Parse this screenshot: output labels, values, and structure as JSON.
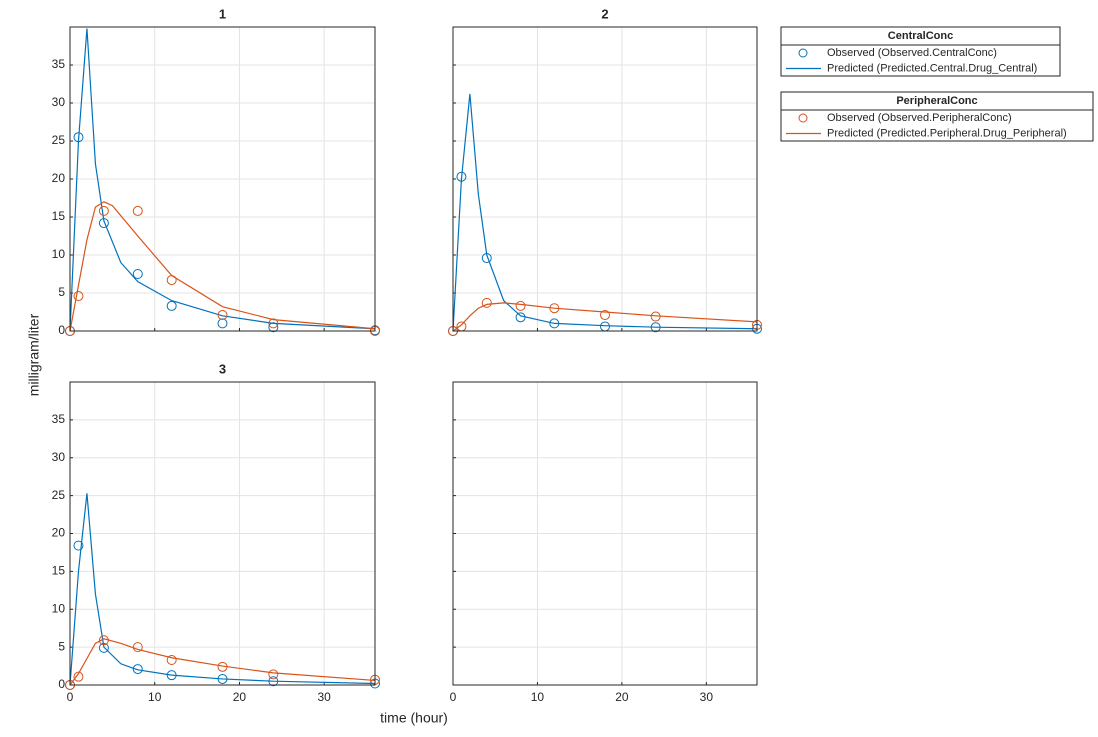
{
  "shared": {
    "xlabel": "time (hour)",
    "ylabel": "milligram/liter"
  },
  "legend": [
    {
      "title": "CentralConc",
      "entries": [
        {
          "name": "Observed (Observed.CentralConc)",
          "kind": "scatter",
          "color": "#0072BD"
        },
        {
          "name": "Predicted (Predicted.Central.Drug_Central)",
          "kind": "line",
          "color": "#0072BD"
        }
      ]
    },
    {
      "title": "PeripheralConc",
      "entries": [
        {
          "name": "Observed (Observed.PeripheralConc)",
          "kind": "scatter",
          "color": "#D95319"
        },
        {
          "name": "Predicted (Predicted.Peripheral.Drug_Peripheral)",
          "kind": "line",
          "color": "#D95319"
        }
      ]
    }
  ],
  "chart_data": [
    {
      "type": "line",
      "title": "1",
      "xlim": [
        0,
        36
      ],
      "ylim": [
        0,
        40
      ],
      "xticks": [
        0,
        10,
        20,
        30
      ],
      "yticks": [
        0,
        5,
        10,
        15,
        20,
        25,
        30,
        35
      ],
      "grid": true,
      "xtick_labels": false,
      "ytick_labels": true,
      "series": [
        {
          "kind": "scatter",
          "color": "#0072BD",
          "x": [
            0,
            1,
            4,
            8,
            12,
            18,
            24,
            36
          ],
          "values": [
            0,
            25.5,
            14.2,
            7.5,
            3.3,
            1.0,
            0.5,
            0.1
          ]
        },
        {
          "kind": "line",
          "color": "#0072BD",
          "x": [
            0,
            1,
            2,
            3,
            4,
            6,
            8,
            12,
            18,
            24,
            36
          ],
          "values": [
            0,
            25,
            39.8,
            22,
            14.5,
            9,
            6.5,
            4,
            2,
            1,
            0.3
          ]
        },
        {
          "kind": "scatter",
          "color": "#D95319",
          "x": [
            0,
            1,
            4,
            8,
            12,
            18,
            24,
            36
          ],
          "values": [
            0,
            4.6,
            15.8,
            15.8,
            6.7,
            2.1,
            1.0,
            0
          ]
        },
        {
          "kind": "line",
          "color": "#D95319",
          "x": [
            0,
            1,
            2,
            3,
            4,
            5,
            8,
            12,
            18,
            24,
            36
          ],
          "values": [
            0,
            6,
            12,
            16.3,
            17,
            16.5,
            12.5,
            7.3,
            3.2,
            1.5,
            0.3
          ]
        }
      ]
    },
    {
      "type": "line",
      "title": "2",
      "xlim": [
        0,
        36
      ],
      "ylim": [
        0,
        40
      ],
      "xticks": [
        0,
        10,
        20,
        30
      ],
      "yticks": [
        0,
        5,
        10,
        15,
        20,
        25,
        30,
        35
      ],
      "grid": true,
      "xtick_labels": false,
      "ytick_labels": false,
      "series": [
        {
          "kind": "scatter",
          "color": "#0072BD",
          "x": [
            0,
            1,
            4,
            8,
            12,
            18,
            24,
            36
          ],
          "values": [
            0,
            20.3,
            9.6,
            1.8,
            1.0,
            0.6,
            0.5,
            0.3
          ]
        },
        {
          "kind": "line",
          "color": "#0072BD",
          "x": [
            0,
            1,
            2,
            3,
            4,
            6,
            8,
            12,
            18,
            24,
            36
          ],
          "values": [
            0,
            20,
            31.2,
            18,
            10,
            4,
            2,
            1,
            0.7,
            0.5,
            0.3
          ]
        },
        {
          "kind": "scatter",
          "color": "#D95319",
          "x": [
            0,
            1,
            4,
            8,
            12,
            18,
            24,
            36
          ],
          "values": [
            0,
            0.6,
            3.7,
            3.3,
            3.0,
            2.1,
            1.9,
            0.8
          ]
        },
        {
          "kind": "line",
          "color": "#D95319",
          "x": [
            0,
            1,
            2,
            3,
            4,
            6,
            8,
            12,
            18,
            24,
            36
          ],
          "values": [
            0,
            0.8,
            2,
            3,
            3.5,
            3.7,
            3.5,
            3.0,
            2.5,
            2.0,
            1.2
          ]
        }
      ]
    },
    {
      "type": "line",
      "title": "3",
      "xlim": [
        0,
        36
      ],
      "ylim": [
        0,
        40
      ],
      "xticks": [
        0,
        10,
        20,
        30
      ],
      "yticks": [
        0,
        5,
        10,
        15,
        20,
        25,
        30,
        35
      ],
      "grid": true,
      "xtick_labels": true,
      "ytick_labels": true,
      "series": [
        {
          "kind": "scatter",
          "color": "#0072BD",
          "x": [
            0,
            1,
            4,
            8,
            12,
            18,
            24,
            36
          ],
          "values": [
            0,
            18.4,
            4.9,
            2.1,
            1.3,
            0.8,
            0.5,
            0.2
          ]
        },
        {
          "kind": "line",
          "color": "#0072BD",
          "x": [
            0,
            1,
            2,
            3,
            4,
            6,
            8,
            12,
            18,
            24,
            36
          ],
          "values": [
            0,
            15,
            25.3,
            12,
            5,
            2.8,
            2.0,
            1.3,
            0.8,
            0.5,
            0.2
          ]
        },
        {
          "kind": "scatter",
          "color": "#D95319",
          "x": [
            0,
            1,
            4,
            8,
            12,
            18,
            24,
            36
          ],
          "values": [
            0,
            1.1,
            5.9,
            5.0,
            3.3,
            2.4,
            1.4,
            0.7
          ]
        },
        {
          "kind": "line",
          "color": "#D95319",
          "x": [
            0,
            1,
            2,
            3,
            4,
            6,
            8,
            12,
            18,
            24,
            36
          ],
          "values": [
            0,
            1.5,
            3.5,
            5.5,
            6.1,
            5.5,
            4.7,
            3.6,
            2.5,
            1.6,
            0.6
          ]
        }
      ]
    },
    {
      "type": "line",
      "xlim": [
        0,
        36
      ],
      "ylim": [
        0,
        40
      ],
      "xticks": [
        0,
        10,
        20,
        30
      ],
      "yticks": [
        0,
        5,
        10,
        15,
        20,
        25,
        30,
        35
      ],
      "grid": true,
      "xtick_labels": true,
      "ytick_labels": false,
      "series": []
    }
  ]
}
